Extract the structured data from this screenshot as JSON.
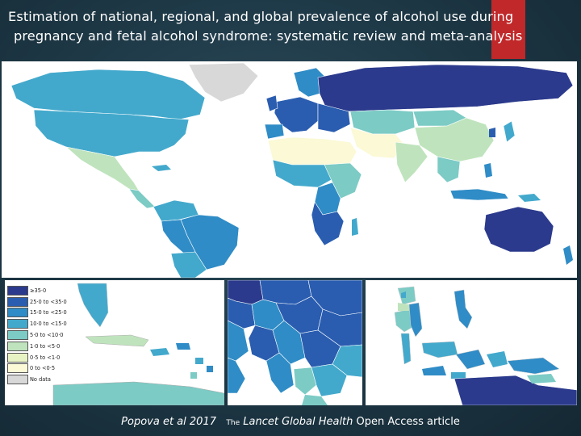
{
  "title": {
    "line1": "Estimation of national, regional, and global prevalence of alcohol use during",
    "line2": "pregnancy and fetal alcohol syndrome: systematic review and meta-analysis"
  },
  "legend": {
    "items": [
      {
        "label": "≥35·0",
        "color": "#2b3a8c"
      },
      {
        "label": "25·0 to <35·0",
        "color": "#2a5db0"
      },
      {
        "label": "15·0 to <25·0",
        "color": "#2f8cc6"
      },
      {
        "label": "10·0 to <15·0",
        "color": "#43a9cc"
      },
      {
        "label": "5·0 to <10·0",
        "color": "#7ccbc5"
      },
      {
        "label": "1·0 to <5·0",
        "color": "#bfe4bd"
      },
      {
        "label": "0·5 to <1·0",
        "color": "#e8f3c4"
      },
      {
        "label": "0 to <0·5",
        "color": "#fbf9d6"
      },
      {
        "label": "No data",
        "color": "#d8d8d8"
      }
    ]
  },
  "caption": {
    "authors": "Popova et al 2017",
    "the": "The",
    "journal": "Lancet Global Health",
    "access": "Open Access article"
  },
  "colors": {
    "red_accent": "#c0282a",
    "background": "#1f3a48"
  }
}
